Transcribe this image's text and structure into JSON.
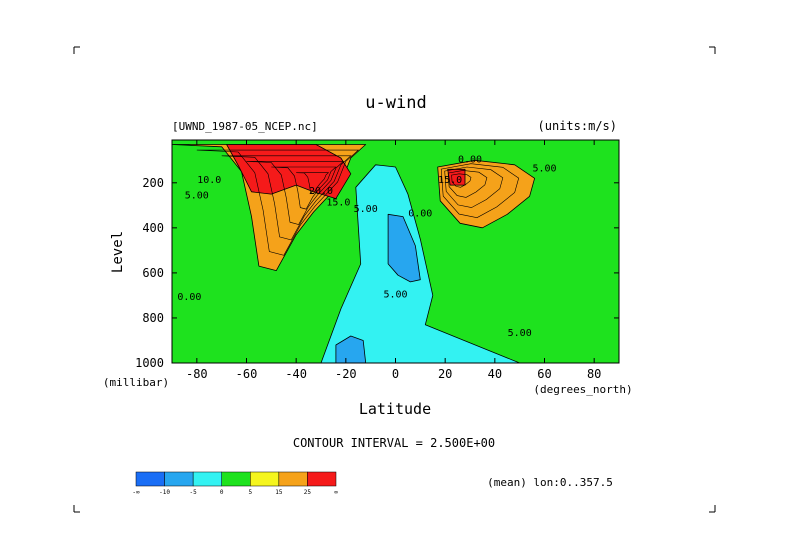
{
  "chart_data": {
    "type": "contour",
    "title": "u-wind",
    "subtitle_left": "[UWND_1987-05_NCEP.nc]",
    "subtitle_right": "(units:m/s)",
    "xlabel": "Latitude",
    "ylabel": "Level",
    "x_units": "(degrees_north)",
    "y_units": "(millibar)",
    "x_ticks": [
      -80,
      -60,
      -40,
      -20,
      0,
      20,
      40,
      60,
      80
    ],
    "y_ticks": [
      200,
      400,
      600,
      800,
      1000
    ],
    "xlim": [
      -90,
      90
    ],
    "ylim": [
      1000,
      10
    ],
    "contour_interval_label": "CONTOUR INTERVAL = 2.500E+00",
    "contour_interval": 2.5,
    "footer_note": "(mean) lon:0..357.5",
    "contour_labels": [
      {
        "text": "10.0",
        "x": -75,
        "y": 200
      },
      {
        "text": "5.00",
        "x": -80,
        "y": 270
      },
      {
        "text": "0.00",
        "x": -83,
        "y": 720
      },
      {
        "text": "20.0",
        "x": -30,
        "y": 250
      },
      {
        "text": "15.0",
        "x": -23,
        "y": 300
      },
      {
        "text": "5.00",
        "x": -12,
        "y": 330
      },
      {
        "text": "0.00",
        "x": 10,
        "y": 350
      },
      {
        "text": "15.0",
        "x": 22,
        "y": 200
      },
      {
        "text": "5.00",
        "x": 0,
        "y": 710
      },
      {
        "text": "5.00",
        "x": 50,
        "y": 880
      },
      {
        "text": "5.00",
        "x": 60,
        "y": 150
      },
      {
        "text": "0.00",
        "x": 30,
        "y": 110
      }
    ],
    "colorbar": {
      "levels": [
        "-∞",
        "-10",
        "-5",
        "0",
        "5",
        "15",
        "25",
        "∞"
      ],
      "colors": [
        "#1a6ef5",
        "#27a6ef",
        "#33f2f2",
        "#1ee21e",
        "#f5f51e",
        "#f5a21a",
        "#f51a1a"
      ]
    },
    "wind_regions": [
      {
        "name": "jet-sh-outer",
        "value": 15,
        "color": "#f5a21a",
        "polygon": [
          [
            -90,
            30
          ],
          [
            -70,
            40
          ],
          [
            -62,
            150
          ],
          [
            -58,
            350
          ],
          [
            -55,
            570
          ],
          [
            -48,
            590
          ],
          [
            -40,
            430
          ],
          [
            -33,
            330
          ],
          [
            -22,
            200
          ],
          [
            -18,
            90
          ],
          [
            -12,
            30
          ],
          [
            -90,
            30
          ]
        ]
      },
      {
        "name": "jet-sh-core",
        "value": 25,
        "color": "#f51a1a",
        "polygon": [
          [
            -68,
            30
          ],
          [
            -63,
            130
          ],
          [
            -58,
            240
          ],
          [
            -50,
            250
          ],
          [
            -40,
            210
          ],
          [
            -33,
            240
          ],
          [
            -24,
            270
          ],
          [
            -18,
            160
          ],
          [
            -22,
            90
          ],
          [
            -32,
            30
          ],
          [
            -68,
            30
          ]
        ]
      },
      {
        "name": "jet-nh-outer",
        "value": 15,
        "color": "#f5a21a",
        "polygon": [
          [
            17,
            130
          ],
          [
            18,
            280
          ],
          [
            26,
            380
          ],
          [
            35,
            400
          ],
          [
            45,
            340
          ],
          [
            54,
            260
          ],
          [
            56,
            180
          ],
          [
            48,
            120
          ],
          [
            32,
            100
          ],
          [
            17,
            130
          ]
        ]
      },
      {
        "name": "jet-nh-core",
        "value": 25,
        "color": "#f51a1a",
        "polygon": [
          [
            21,
            140
          ],
          [
            22,
            210
          ],
          [
            28,
            210
          ],
          [
            28,
            140
          ],
          [
            21,
            140
          ]
        ]
      },
      {
        "name": "easterly-tropics",
        "value": -5,
        "color": "#33f2f2",
        "polygon": [
          [
            -16,
            220
          ],
          [
            -14,
            560
          ],
          [
            -22,
            760
          ],
          [
            -30,
            1000
          ],
          [
            50,
            1000
          ],
          [
            12,
            830
          ],
          [
            15,
            700
          ],
          [
            10,
            450
          ],
          [
            5,
            250
          ],
          [
            0,
            130
          ],
          [
            -8,
            120
          ],
          [
            -16,
            220
          ]
        ]
      },
      {
        "name": "easterly-core",
        "value": -10,
        "color": "#27a6ef",
        "polygon": [
          [
            -3,
            340
          ],
          [
            -3,
            560
          ],
          [
            1,
            610
          ],
          [
            6,
            640
          ],
          [
            10,
            630
          ],
          [
            8,
            480
          ],
          [
            3,
            350
          ],
          [
            -3,
            340
          ]
        ]
      },
      {
        "name": "easterly-surface",
        "value": -10,
        "color": "#27a6ef",
        "polygon": [
          [
            -24,
            1000
          ],
          [
            -24,
            920
          ],
          [
            -18,
            880
          ],
          [
            -13,
            900
          ],
          [
            -12,
            1000
          ],
          [
            -24,
            1000
          ]
        ]
      }
    ]
  }
}
